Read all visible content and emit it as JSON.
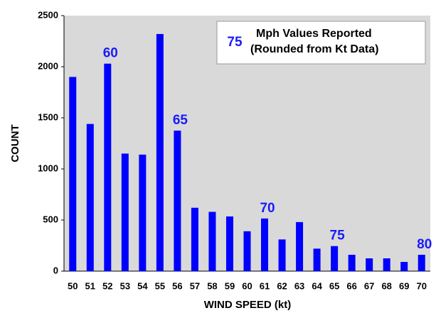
{
  "chart_data": {
    "type": "bar",
    "x_label": "WIND SPEED (kt)",
    "y_label": "COUNT",
    "categories": [
      "50",
      "51",
      "52",
      "53",
      "54",
      "55",
      "56",
      "57",
      "58",
      "59",
      "60",
      "61",
      "62",
      "63",
      "64",
      "65",
      "66",
      "67",
      "68",
      "69",
      "70"
    ],
    "values": [
      1900,
      1440,
      2030,
      1150,
      1140,
      2320,
      1375,
      620,
      580,
      535,
      390,
      515,
      310,
      480,
      220,
      245,
      160,
      125,
      125,
      90,
      160
    ],
    "color": "#0000ff",
    "ylim": [
      0,
      2500
    ],
    "yticks": [
      0,
      500,
      1000,
      1500,
      2000,
      2500
    ],
    "grid": false,
    "legend": {
      "marker": "75",
      "lines": [
        "Mph Values Reported",
        "(Rounded from Kt Data)"
      ]
    },
    "annotations": [
      {
        "text": "60",
        "category": "52"
      },
      {
        "text": "65",
        "category": "56"
      },
      {
        "text": "70",
        "category": "61"
      },
      {
        "text": "75",
        "category": "65"
      },
      {
        "text": "80",
        "category": "70"
      }
    ]
  }
}
